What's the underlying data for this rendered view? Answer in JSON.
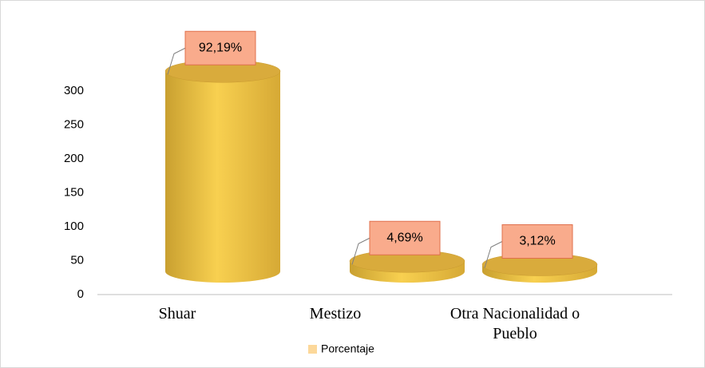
{
  "chart_data": {
    "type": "bar",
    "categories": [
      "Shuar",
      "Mestizo",
      "Otra Nacionalidad o Pueblo"
    ],
    "series": [
      {
        "name": "Porcentaje",
        "color": "#f2c443",
        "values": [
          295,
          15,
          10
        ]
      }
    ],
    "annotations": [
      "92,19%",
      "4,69%",
      "3,12%"
    ],
    "legend_color": "#fcd89a",
    "ylim": [
      0,
      350
    ],
    "yticks": [
      0,
      50,
      100,
      150,
      200,
      250,
      300
    ],
    "grid": false,
    "legend": "bottom"
  }
}
